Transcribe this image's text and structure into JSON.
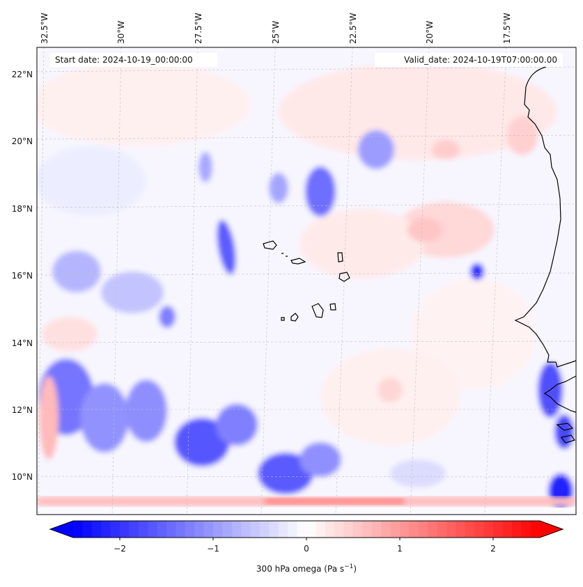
{
  "map": {
    "start_date": "Start date: 2024-10-19_00:00:00",
    "valid_date": "Valid_date: 2024-10-19T07:00:00.00",
    "lon_labels": [
      "32.5°W",
      "30°W",
      "27.5°W",
      "25°W",
      "22.5°W",
      "20°W",
      "17.5°W"
    ],
    "lat_labels": [
      "22°N",
      "20°N",
      "18°N",
      "16°N",
      "14°N",
      "12°N",
      "10°N"
    ]
  },
  "colorbar": {
    "ticks": [
      "−2",
      "−1",
      "0",
      "1",
      "2"
    ],
    "label_main": "300 hPa omega (Pa s",
    "label_sup": "−1",
    "label_end": ")",
    "min_color": "#0000ff",
    "mid_color": "#ffffff",
    "max_color": "#ff0000"
  }
}
